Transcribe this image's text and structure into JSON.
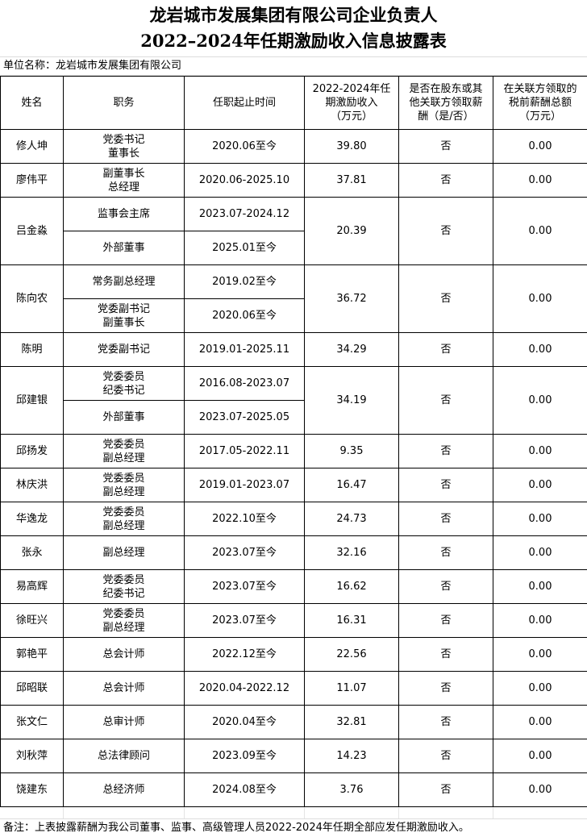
{
  "title": {
    "line1": "龙岩城市发展集团有限公司企业负责人",
    "line2": "2022–2024年任期激励收入信息披露表"
  },
  "unit": "单位名称：龙岩城市发展集团有限公司",
  "headers": [
    "姓名",
    "职务",
    "任职起止时间",
    "2022-2024年任\n期激励收入\n（万元）",
    "是否在股东或其\n他关联方领取薪\n酬（是/否）",
    "在关联方领取的\n税前薪酬总额\n（万元）"
  ],
  "rows": [
    {
      "name": "修人坤",
      "positions": [
        {
          "title": "党委书记\n董事长",
          "period": "2020.06至今"
        }
      ],
      "income": "39.80",
      "related": "否",
      "amount": "0.00"
    },
    {
      "name": "廖伟平",
      "positions": [
        {
          "title": "副董事长\n总经理",
          "period": "2020.06-2025.10"
        }
      ],
      "income": "37.81",
      "related": "否",
      "amount": "0.00"
    },
    {
      "name": "吕金淼",
      "positions": [
        {
          "title": "监事会主席",
          "period": "2023.07-2024.12"
        },
        {
          "title": "外部董事",
          "period": "2025.01至今"
        }
      ],
      "income": "20.39",
      "related": "否",
      "amount": "0.00"
    },
    {
      "name": "陈向农",
      "positions": [
        {
          "title": "常务副总经理",
          "period": "2019.02至今"
        },
        {
          "title": "党委副书记\n副董事长",
          "period": "2020.06至今"
        }
      ],
      "income": "36.72",
      "related": "否",
      "amount": "0.00"
    },
    {
      "name": "陈明",
      "positions": [
        {
          "title": "党委副书记",
          "period": "2019.01-2025.11"
        }
      ],
      "income": "34.29",
      "related": "否",
      "amount": "0.00"
    },
    {
      "name": "邱建银",
      "positions": [
        {
          "title": "党委委员\n纪委书记",
          "period": "2016.08-2023.07"
        },
        {
          "title": "外部董事",
          "period": "2023.07-2025.05"
        }
      ],
      "income": "34.19",
      "related": "否",
      "amount": "0.00"
    },
    {
      "name": "邱扬发",
      "positions": [
        {
          "title": "党委委员\n副总经理",
          "period": "2017.05-2022.11"
        }
      ],
      "income": "9.35",
      "related": "否",
      "amount": "0.00"
    },
    {
      "name": "林庆洪",
      "positions": [
        {
          "title": "党委委员\n副总经理",
          "period": "2019.01-2023.07"
        }
      ],
      "income": "16.47",
      "related": "否",
      "amount": "0.00"
    },
    {
      "name": "华逸龙",
      "positions": [
        {
          "title": "党委委员\n副总经理",
          "period": "2022.10至今"
        }
      ],
      "income": "24.73",
      "related": "否",
      "amount": "0.00"
    },
    {
      "name": "张永",
      "positions": [
        {
          "title": "副总经理",
          "period": "2023.07至今"
        }
      ],
      "income": "32.16",
      "related": "否",
      "amount": "0.00"
    },
    {
      "name": "易高辉",
      "positions": [
        {
          "title": "党委委员\n纪委书记",
          "period": "2023.07至今"
        }
      ],
      "income": "16.62",
      "related": "否",
      "amount": "0.00"
    },
    {
      "name": "徐旺兴",
      "positions": [
        {
          "title": "党委委员\n副总经理",
          "period": "2023.07至今"
        }
      ],
      "income": "16.31",
      "related": "否",
      "amount": "0.00"
    },
    {
      "name": "郭艳平",
      "positions": [
        {
          "title": "总会计师",
          "period": "2022.12至今"
        }
      ],
      "income": "22.56",
      "related": "否",
      "amount": "0.00"
    },
    {
      "name": "邱昭联",
      "positions": [
        {
          "title": "总会计师",
          "period": "2020.04-2022.12"
        }
      ],
      "income": "11.07",
      "related": "否",
      "amount": "0.00"
    },
    {
      "name": "张文仁",
      "positions": [
        {
          "title": "总审计师",
          "period": "2020.04至今"
        }
      ],
      "income": "32.81",
      "related": "否",
      "amount": "0.00"
    },
    {
      "name": "刘秋萍",
      "positions": [
        {
          "title": "总法律顾问",
          "period": "2023.09至今"
        }
      ],
      "income": "14.23",
      "related": "否",
      "amount": "0.00"
    },
    {
      "name": "饶建东",
      "positions": [
        {
          "title": "总经济师",
          "period": "2024.08至今"
        }
      ],
      "income": "3.76",
      "related": "否",
      "amount": "0.00"
    }
  ],
  "note": "备注：上表披露薪酬为我公司董事、监事、高级管理人员2022-2024年任期全部应发任期激励收入。"
}
